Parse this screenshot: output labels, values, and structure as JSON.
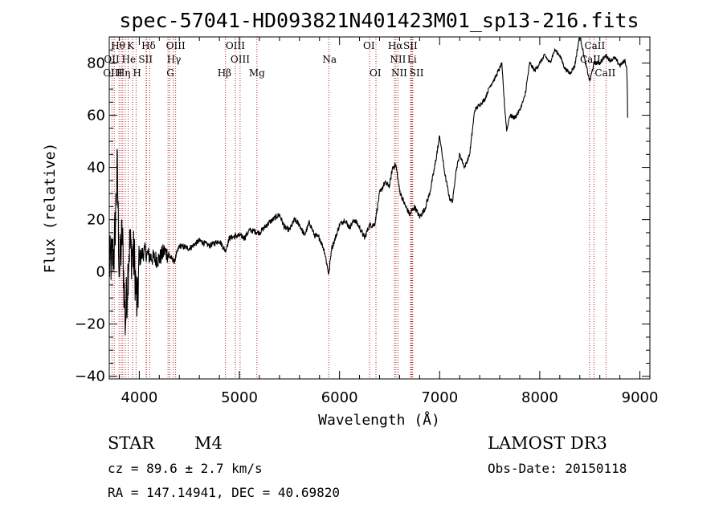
{
  "chart_data": {
    "type": "line",
    "title": "spec-57041-HD093821N401423M01_sp13-216.fits",
    "xlabel": "Wavelength (Å)",
    "ylabel": "Flux (relative)",
    "xlim": [
      3700,
      9100
    ],
    "ylim": [
      -41,
      90
    ],
    "xticks": [
      4000,
      5000,
      6000,
      7000,
      8000,
      9000
    ],
    "yticks": [
      -40,
      -20,
      0,
      20,
      40,
      60,
      80
    ],
    "xtick_labels": [
      "4000",
      "5000",
      "6000",
      "7000",
      "8000",
      "9000"
    ],
    "ytick_labels": [
      "−40",
      "−20",
      "0",
      "20",
      "40",
      "60",
      "80"
    ],
    "series": [
      {
        "name": "flux",
        "x": [
          3700,
          3750,
          3780,
          3800,
          3830,
          3860,
          3900,
          3950,
          3980,
          4000,
          4050,
          4100,
          4150,
          4200,
          4250,
          4300,
          4350,
          4400,
          4500,
          4600,
          4700,
          4800,
          4860,
          4900,
          5000,
          5050,
          5100,
          5200,
          5300,
          5400,
          5450,
          5500,
          5550,
          5600,
          5650,
          5700,
          5750,
          5800,
          5850,
          5893,
          5920,
          5950,
          6000,
          6050,
          6100,
          6150,
          6200,
          6250,
          6300,
          6350,
          6400,
          6450,
          6500,
          6530,
          6563,
          6600,
          6650,
          6700,
          6750,
          6800,
          6850,
          6900,
          6950,
          7000,
          7050,
          7100,
          7130,
          7160,
          7200,
          7250,
          7300,
          7350,
          7400,
          7450,
          7500,
          7550,
          7600,
          7620,
          7650,
          7670,
          7700,
          7750,
          7800,
          7850,
          7900,
          7950,
          8000,
          8050,
          8100,
          8150,
          8200,
          8250,
          8300,
          8350,
          8400,
          8450,
          8500,
          8542,
          8600,
          8662,
          8700,
          8750,
          8800,
          8850,
          8870,
          8880
        ],
        "y": [
          2,
          8,
          40,
          0,
          15,
          -20,
          10,
          5,
          -15,
          5,
          8,
          6,
          5,
          5,
          8,
          6,
          4,
          10,
          9,
          12,
          10,
          12,
          8,
          13,
          14,
          13,
          16,
          15,
          19,
          22,
          17,
          16,
          20,
          18,
          14,
          19,
          14,
          13,
          8,
          -1,
          9,
          12,
          18,
          20,
          17,
          20,
          17,
          13,
          18,
          18,
          30,
          34,
          33,
          40,
          41,
          31,
          26,
          22,
          25,
          21,
          24,
          30,
          40,
          52,
          38,
          28,
          27,
          38,
          45,
          40,
          45,
          62,
          64,
          66,
          71,
          74,
          78,
          80,
          63,
          54,
          60,
          59,
          62,
          67,
          80,
          77,
          80,
          83,
          80,
          85,
          83,
          78,
          76,
          79,
          91,
          81,
          73,
          80,
          80,
          83,
          81,
          82,
          79,
          81,
          78,
          55
        ]
      }
    ],
    "lines": [
      {
        "label": "Hθ",
        "wl": 3798,
        "row": 0,
        "dx": -10
      },
      {
        "label": "K",
        "wl": 3934,
        "row": 0,
        "dx": -7
      },
      {
        "label": "Hδ",
        "wl": 4102,
        "row": 0,
        "dx": -10
      },
      {
        "label": "OIII",
        "wl": 4363,
        "row": 0,
        "dx": -12
      },
      {
        "label": "OIII",
        "wl": 4959,
        "row": 0,
        "dx": -12
      },
      {
        "label": "OI",
        "wl": 6300,
        "row": 0,
        "dx": -8
      },
      {
        "label": "Hα",
        "wl": 6563,
        "row": 0,
        "dx": -10
      },
      {
        "label": "SII",
        "wl": 6717,
        "row": 0,
        "dx": -10
      },
      {
        "label": "CaII",
        "wl": 8542,
        "row": 0,
        "dx": -12
      },
      {
        "label": "OII",
        "wl": 3727,
        "row": 1,
        "dx": -10
      },
      {
        "label": "He",
        "wl": 3889,
        "row": 1,
        "dx": -8
      },
      {
        "label": "SII",
        "wl": 4072,
        "row": 1,
        "dx": -10
      },
      {
        "label": "Hγ",
        "wl": 4340,
        "row": 1,
        "dx": -8
      },
      {
        "label": "OIII",
        "wl": 5007,
        "row": 1,
        "dx": -12
      },
      {
        "label": "Na",
        "wl": 5893,
        "row": 1,
        "dx": -8
      },
      {
        "label": "NII",
        "wl": 6584,
        "row": 1,
        "dx": -10
      },
      {
        "label": "Li",
        "wl": 6708,
        "row": 1,
        "dx": -4
      },
      {
        "label": "CaII",
        "wl": 8498,
        "row": 1,
        "dx": -12
      },
      {
        "label": "OIII",
        "wl": 3750,
        "row": 2,
        "dx": -14
      },
      {
        "label": "Hη",
        "wl": 3835,
        "row": 2,
        "dx": -8
      },
      {
        "label": "H",
        "wl": 3968,
        "row": 2,
        "dx": -4
      },
      {
        "label": "G",
        "wl": 4304,
        "row": 2,
        "dx": -4
      },
      {
        "label": "Hβ",
        "wl": 4861,
        "row": 2,
        "dx": -10
      },
      {
        "label": "Mg",
        "wl": 5175,
        "row": 2,
        "dx": -10
      },
      {
        "label": "OI",
        "wl": 6364,
        "row": 2,
        "dx": -8
      },
      {
        "label": "NII",
        "wl": 6548,
        "row": 2,
        "dx": -4
      },
      {
        "label": "SII",
        "wl": 6731,
        "row": 2,
        "dx": -4
      },
      {
        "label": "CaII",
        "wl": 8662,
        "row": 2,
        "dx": -14
      }
    ],
    "extra_marker_wl": [
      3820,
      3860,
      4068,
      4287,
      6717,
      6725
    ]
  },
  "info": {
    "object_type": "STAR",
    "subclass": "M4",
    "survey": "LAMOST DR3",
    "redshift": "cz = 89.6 ± 2.7 km/s",
    "obs_date": "Obs-Date: 20150118",
    "coords": "RA = 147.14941, DEC =  40.69820"
  },
  "colors": {
    "spectrum": "#000000",
    "line_markers": "#b22222",
    "axes": "#000000"
  }
}
